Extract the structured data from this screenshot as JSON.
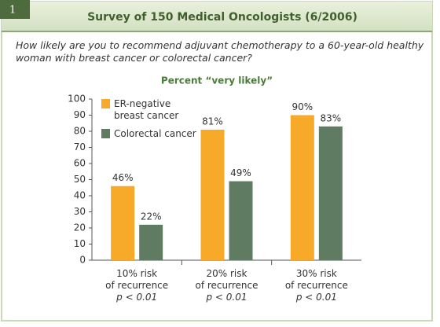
{
  "header": {
    "number": "1",
    "title": "Survey of 150 Medical Oncologists (6/2006)"
  },
  "question": "How likely are you to recommend adjuvant chemotherapy to a 60-year-old healthy woman with breast cancer or colorectal cancer?",
  "chart_data": {
    "type": "bar",
    "title": "Percent “very likely”",
    "categories": [
      "10% risk\nof recurrence",
      "20% risk\nof recurrence",
      "30% risk\nof recurrence"
    ],
    "category_notes": [
      "p < 0.01",
      "p < 0.01",
      "p < 0.01"
    ],
    "series": [
      {
        "name": "ER-negative\nbreast cancer",
        "color": "#f7a92a",
        "values": [
          46,
          81,
          90
        ],
        "value_labels": [
          "46%",
          "81%",
          "90%"
        ]
      },
      {
        "name": "Colorectal cancer",
        "color": "#5f7c63",
        "values": [
          22,
          49,
          83
        ],
        "value_labels": [
          "22%",
          "49%",
          "83%"
        ]
      }
    ],
    "ylim": [
      0,
      100
    ],
    "yticks": [
      0,
      10,
      20,
      30,
      40,
      50,
      60,
      70,
      80,
      90,
      100
    ],
    "legend": "upper left"
  }
}
